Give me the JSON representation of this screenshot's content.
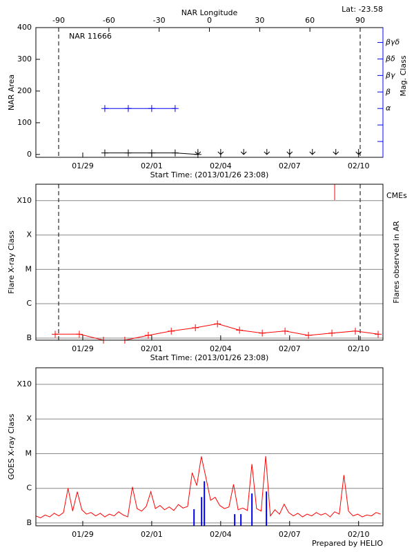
{
  "chart_data": [
    {
      "type": "line",
      "title": "NAR 11666",
      "annotation": "Lat: -23.58",
      "x2label": "NAR Longitude",
      "x2lim": [
        -103.6,
        103.6
      ],
      "x2ticks": [
        -90,
        -60,
        -30,
        0,
        30,
        60,
        90
      ],
      "x2_vlines": [
        -90,
        90
      ],
      "xlabel": "Start Time: (2013/01/26 23:08)",
      "xlim": [
        0,
        15.1
      ],
      "xticks": [
        {
          "value": 2.04,
          "label": "01/29"
        },
        {
          "value": 5.04,
          "label": "02/01"
        },
        {
          "value": 8.04,
          "label": "02/04"
        },
        {
          "value": 11.04,
          "label": "02/07"
        },
        {
          "value": 14.04,
          "label": "02/10"
        }
      ],
      "ylabel": "NAR Area",
      "ylim": [
        -9,
        400
      ],
      "yticks": [
        0,
        100,
        200,
        300,
        400
      ],
      "y2label": "Mag. Class",
      "y2color": "#0000ff",
      "y2lim": [
        -2.96,
        4.9
      ],
      "y2ticks": [
        {
          "value": 0,
          "label": "α"
        },
        {
          "value": 1,
          "label": "β"
        },
        {
          "value": 2,
          "label": "βγ"
        },
        {
          "value": 3,
          "label": "βδ"
        },
        {
          "value": 4,
          "label": "βγδ"
        }
      ],
      "y2minor_ticks": [
        -2,
        -1
      ],
      "series": [
        {
          "color": "#000000",
          "marker": "plus",
          "connect": true,
          "x": [
            3.0,
            4.02,
            5.04,
            6.06,
            7.05
          ],
          "values": [
            5,
            5,
            5,
            5,
            0
          ]
        },
        {
          "color": "#000000",
          "marker": "arrow",
          "connect": false,
          "x": [
            7.05,
            8.04,
            9.04,
            10.05,
            11.04,
            12.03,
            13.05,
            14.04
          ],
          "values": [
            0,
            0,
            0,
            0,
            0,
            0,
            0,
            0
          ]
        },
        {
          "color": "#0000ff",
          "axis": "y2",
          "marker": "plus",
          "connect": true,
          "x": [
            3.0,
            4.02,
            5.04,
            6.06
          ],
          "values": [
            0,
            0,
            0,
            0
          ]
        }
      ]
    },
    {
      "type": "line",
      "xlabel": "Start Time: (2013/01/26 23:08)",
      "xlim": [
        0,
        15.1
      ],
      "xticks": [
        {
          "value": 2.04,
          "label": "01/29"
        },
        {
          "value": 5.04,
          "label": "02/01"
        },
        {
          "value": 8.04,
          "label": "02/04"
        },
        {
          "value": 11.04,
          "label": "02/07"
        },
        {
          "value": 14.04,
          "label": "02/10"
        }
      ],
      "ylabel": "Flare X-ray Class",
      "y2label": "Flares observed in AR",
      "log": true,
      "grid": true,
      "ylim": [
        8.7e-08,
        0.003
      ],
      "yticks": [
        {
          "value": 1e-07,
          "label": "B"
        },
        {
          "value": 1e-06,
          "label": "C"
        },
        {
          "value": 1e-05,
          "label": "M"
        },
        {
          "value": 0.0001,
          "label": "X"
        },
        {
          "value": 0.001,
          "label": "X10"
        }
      ],
      "vlines": [
        0.99,
        14.11
      ],
      "cme_label": "CMEs",
      "cme_color": "#ff0000",
      "cme_x": [
        13.0
      ],
      "series": [
        {
          "color": "#ff0000",
          "marker": "plus",
          "connect": true,
          "x": [
            0.84,
            1.89,
            2.94,
            3.87,
            4.89,
            5.89,
            6.94,
            7.9,
            8.86,
            9.85,
            10.84,
            11.86,
            12.88,
            13.9,
            14.89
          ],
          "values": [
            1.3e-07,
            1.3e-07,
            8.7e-08,
            8.7e-08,
            1.2e-07,
            1.6e-07,
            2e-07,
            2.6e-07,
            1.7e-07,
            1.4e-07,
            1.6e-07,
            1.2e-07,
            1.4e-07,
            1.6e-07,
            1.3e-07
          ]
        }
      ]
    },
    {
      "type": "line",
      "xlim": [
        0,
        15.1
      ],
      "xticks": [
        {
          "value": 2.04,
          "label": "01/29"
        },
        {
          "value": 5.04,
          "label": "02/01"
        },
        {
          "value": 8.04,
          "label": "02/04"
        },
        {
          "value": 11.04,
          "label": "02/07"
        },
        {
          "value": 14.04,
          "label": "02/10"
        }
      ],
      "ylabel": "GOES X-ray Class",
      "log": true,
      "grid": true,
      "ylim": [
        8.3e-08,
        0.003
      ],
      "yticks": [
        {
          "value": 1e-07,
          "label": "B"
        },
        {
          "value": 1e-06,
          "label": "C"
        },
        {
          "value": 1e-05,
          "label": "M"
        },
        {
          "value": 0.0001,
          "label": "X"
        },
        {
          "value": 0.001,
          "label": "X10"
        }
      ],
      "series": [
        {
          "color": "#ff0000",
          "connect": true,
          "x": [
            0,
            0.2,
            0.4,
            0.6,
            0.8,
            1.0,
            1.2,
            1.4,
            1.6,
            1.8,
            2.0,
            2.2,
            2.4,
            2.6,
            2.8,
            3.0,
            3.2,
            3.4,
            3.6,
            3.8,
            4.0,
            4.2,
            4.4,
            4.6,
            4.8,
            5.0,
            5.2,
            5.4,
            5.6,
            5.8,
            6.0,
            6.2,
            6.4,
            6.6,
            6.8,
            7.0,
            7.2,
            7.4,
            7.6,
            7.8,
            8.0,
            8.2,
            8.4,
            8.6,
            8.8,
            9.0,
            9.2,
            9.4,
            9.6,
            9.8,
            10.0,
            10.2,
            10.4,
            10.6,
            10.8,
            11.0,
            11.2,
            11.4,
            11.6,
            11.8,
            12.0,
            12.2,
            12.4,
            12.6,
            12.8,
            13.0,
            13.2,
            13.4,
            13.6,
            13.8,
            14.0,
            14.2,
            14.4,
            14.6,
            14.8,
            15.0
          ],
          "values": [
            1.6e-07,
            1.4e-07,
            1.7e-07,
            1.5e-07,
            1.9e-07,
            1.6e-07,
            2e-07,
            1e-06,
            2.2e-07,
            8e-07,
            2.4e-07,
            1.8e-07,
            2e-07,
            1.6e-07,
            1.9e-07,
            1.5e-07,
            1.8e-07,
            1.6e-07,
            2.1e-07,
            1.7e-07,
            1.5e-07,
            1.1e-06,
            2.6e-07,
            2.2e-07,
            3e-07,
            8e-07,
            2.6e-07,
            3.2e-07,
            2.4e-07,
            2.9e-07,
            2.3e-07,
            3.4e-07,
            2.7e-07,
            3e-07,
            2.8e-06,
            1.2e-06,
            8.3e-06,
            2e-06,
            4.5e-07,
            5.5e-07,
            3.2e-07,
            2.6e-07,
            2.9e-07,
            1.3e-06,
            2.4e-07,
            2.7e-07,
            2.3e-07,
            5e-06,
            2.6e-07,
            2.2e-07,
            8.5e-06,
            1.6e-07,
            2.4e-07,
            1.8e-07,
            3.5e-07,
            2e-07,
            1.6e-07,
            1.9e-07,
            1.5e-07,
            1.8e-07,
            1.6e-07,
            2e-07,
            1.7e-07,
            1.9e-07,
            1.5e-07,
            2.1e-07,
            1.8e-07,
            2.4e-06,
            2.2e-07,
            1.6e-07,
            1.8e-07,
            1.5e-07,
            1.7e-07,
            1.6e-07,
            2e-07,
            1.8e-07
          ]
        },
        {
          "color": "#0000ff",
          "marker": "bar",
          "connect": false,
          "x": [
            6.88,
            7.21,
            7.33,
            8.65,
            8.92,
            9.4,
            10.03
          ],
          "values": [
            2.5e-07,
            5.6e-07,
            1.6e-06,
            1.8e-07,
            1.8e-07,
            7.1e-07,
            8.1e-07
          ]
        }
      ]
    }
  ],
  "footer": "Prepared by HELIO"
}
